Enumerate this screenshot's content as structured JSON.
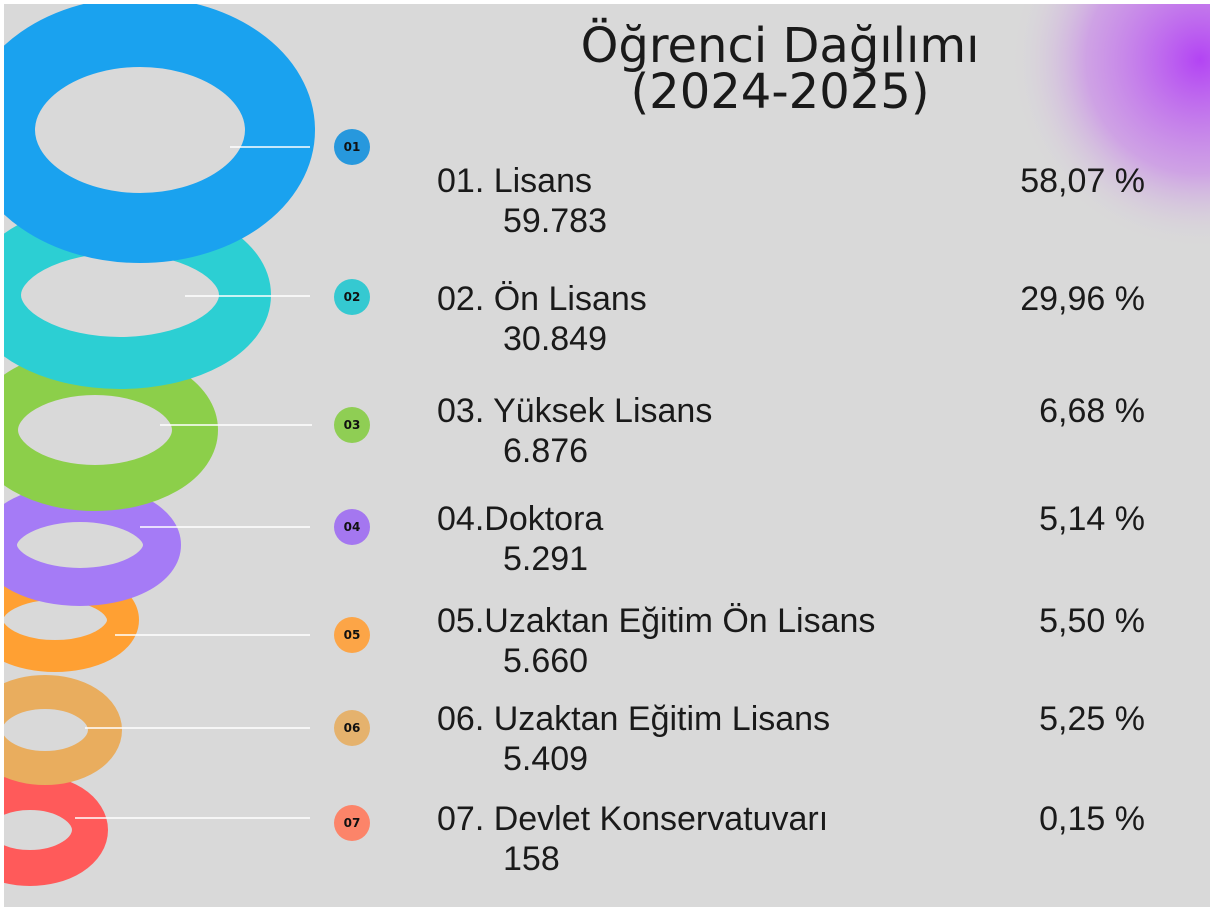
{
  "title": [
    "Öğrenci Dağılımı",
    "(2024-2025)"
  ],
  "items": [
    {
      "badge": "01",
      "label": "01. Lisans",
      "count": "59.783",
      "percent": "58,07 %"
    },
    {
      "badge": "02",
      "label": "02. Ön Lisans",
      "count": "30.849",
      "percent": "29,96 %"
    },
    {
      "badge": "03",
      "label": "03. Yüksek Lisans",
      "count": "6.876",
      "percent": "6,68 %"
    },
    {
      "badge": "04",
      "label": "04.Doktora",
      "count": "5.291",
      "percent": "5,14 %"
    },
    {
      "badge": "05",
      "label": "05.Uzaktan Eğitim Ön Lisans",
      "count": "5.660",
      "percent": "5,50 %"
    },
    {
      "badge": "06",
      "label": "06. Uzaktan Eğitim Lisans",
      "count": "5.409",
      "percent": "5,25 %"
    },
    {
      "badge": "07",
      "label": "07. Devlet Konservatuvarı",
      "count": "158",
      "percent": "0,15 %"
    }
  ]
}
